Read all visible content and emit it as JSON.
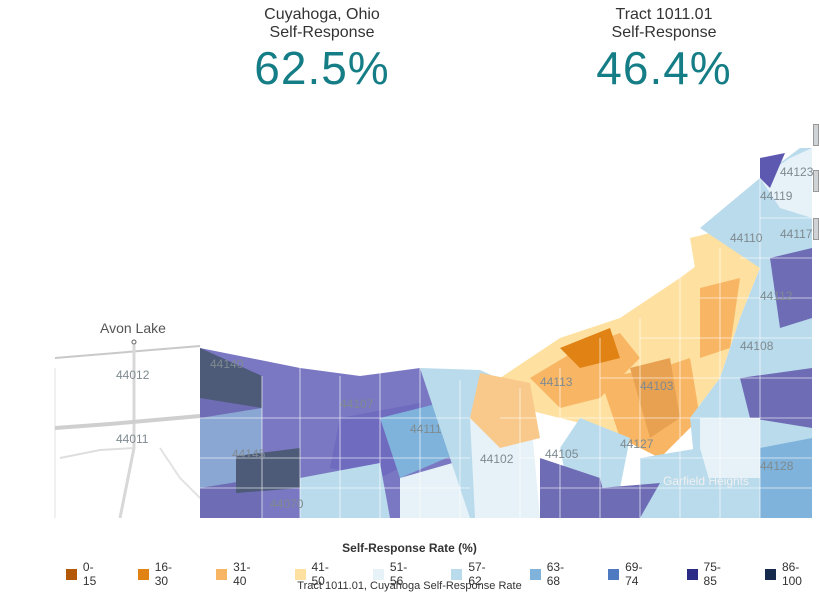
{
  "stats": [
    {
      "line1": "Cuyahoga, Ohio",
      "line2": "Self-Response",
      "value": "62.5%"
    },
    {
      "line1": "Tract 1011.01",
      "line2": "Self-Response",
      "value": "46.4%"
    }
  ],
  "map": {
    "places": [
      "Avon Lake",
      "Garfield Heights"
    ],
    "zips": [
      "44012",
      "44011",
      "44140",
      "44145",
      "44070",
      "44107",
      "44111",
      "44102",
      "44113",
      "44105",
      "44127",
      "44119",
      "44123",
      "44117",
      "44110",
      "44103",
      "44108",
      "44112",
      "44128"
    ]
  },
  "legend": {
    "title": "Self-Response Rate (%)",
    "items": [
      {
        "label": "0-15",
        "color": "#b35806"
      },
      {
        "label": "16-30",
        "color": "#e08214"
      },
      {
        "label": "31-40",
        "color": "#f8b664"
      },
      {
        "label": "41-50",
        "color": "#fee0a0"
      },
      {
        "label": "51-56",
        "color": "#e6f2f8"
      },
      {
        "label": "57-62",
        "color": "#b9dbec"
      },
      {
        "label": "63-68",
        "color": "#7fb3dc"
      },
      {
        "label": "69-74",
        "color": "#4f79c0"
      },
      {
        "label": "75-85",
        "color": "#2b2a87"
      },
      {
        "label": "86-100",
        "color": "#162a4e"
      }
    ]
  },
  "footer": "Tract 1011.01, Cuyahoga Self-Response Rate"
}
